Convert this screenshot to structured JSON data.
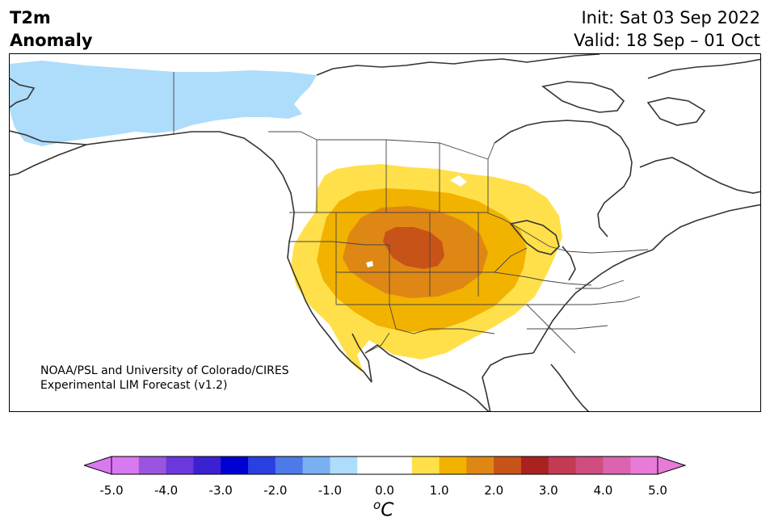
{
  "header": {
    "title_line1": "T2m",
    "title_line2": "Anomaly",
    "init": "Init: Sat 03 Sep 2022",
    "valid": "Valid: 18 Sep – 01 Oct"
  },
  "credit": {
    "line1": "NOAA/PSL and University of Colorado/CIRES",
    "line2": "Experimental LIM Forecast (v1.2)"
  },
  "colorbar": {
    "unit": "oC",
    "ticks": [
      "-5.0",
      "-4.0",
      "-3.0",
      "-2.0",
      "-1.0",
      "0.0",
      "1.0",
      "2.0",
      "3.0",
      "4.0",
      "5.0"
    ],
    "colors": [
      "#d879ef",
      "#9a55e0",
      "#6a38dc",
      "#3a22d2",
      "#0000d2",
      "#2a3fe0",
      "#4d7ae8",
      "#78b0f2",
      "#aedcfb",
      "#ffffff",
      "#ffffff",
      "#ffe04a",
      "#f2b200",
      "#df8714",
      "#c75318",
      "#a9221f",
      "#c43a52",
      "#cf4e7f",
      "#dc63ae",
      "#e87ad8"
    ],
    "under_color": "#d879ef",
    "over_color": "#e87ad8"
  },
  "map": {
    "colors": {
      "cool_anomaly": "#aedcfb",
      "warm_1": "#ffe04a",
      "warm_2": "#f2b200",
      "warm_3": "#df8714",
      "warm_4": "#c75318",
      "coast": "#333333",
      "border": "#444444"
    }
  }
}
